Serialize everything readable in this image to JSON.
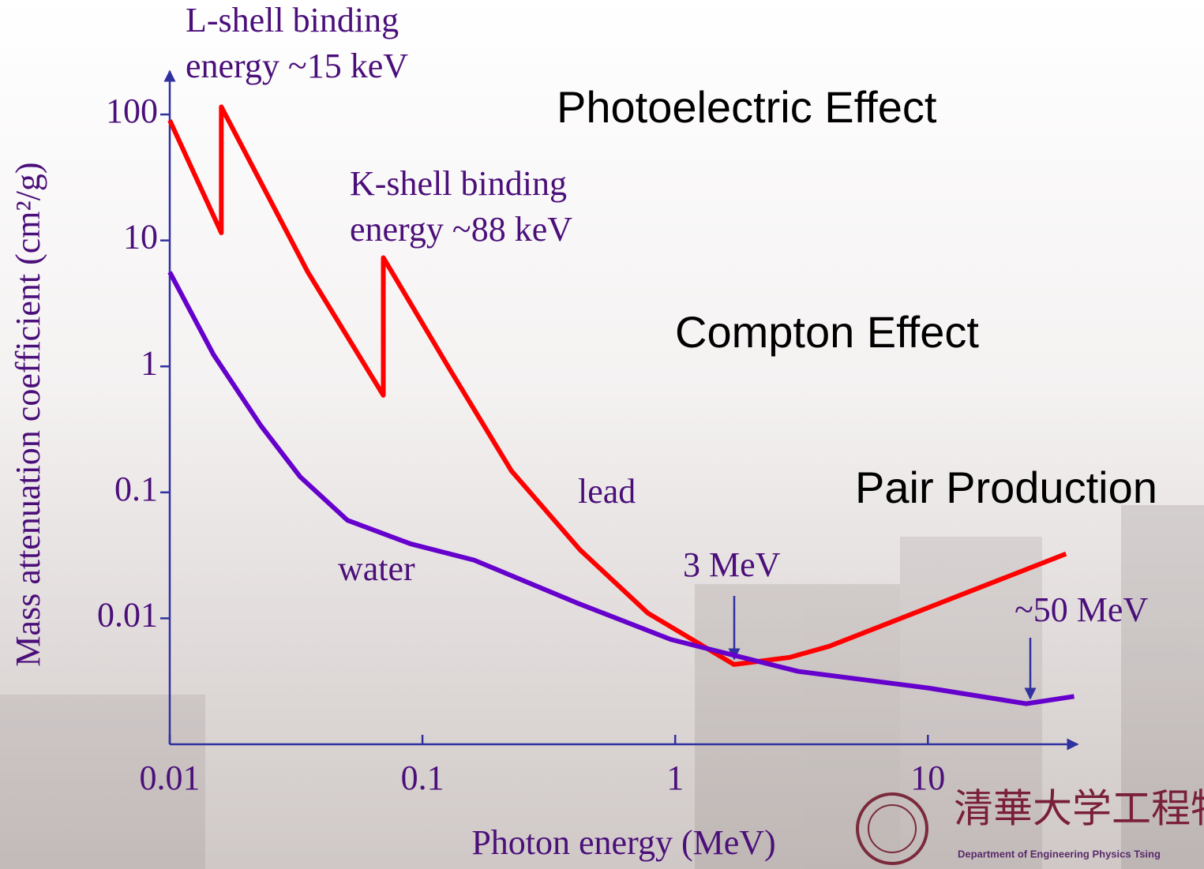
{
  "chart_data": {
    "type": "line",
    "xlabel": "Photon energy (MeV)",
    "ylabel": "Mass attenuation coefficient (cm²/g)",
    "xlog": true,
    "ylog": true,
    "xlim": [
      0.01,
      40
    ],
    "ylim": [
      0.001,
      200
    ],
    "xticks": [
      0.01,
      0.1,
      1,
      10
    ],
    "yticks": [
      0.01,
      0.1,
      1,
      10,
      100
    ],
    "series": [
      {
        "name": "lead",
        "color": "#ff0000",
        "x": [
          0.01,
          0.016,
          0.016,
          0.0352,
          0.07,
          0.07,
          0.129,
          0.225,
          0.42,
          0.78,
          1.71,
          2.84,
          4.07,
          35.2
        ],
        "values": [
          90,
          11.5,
          115,
          5.6,
          0.59,
          7.3,
          0.93,
          0.148,
          0.035,
          0.011,
          0.0043,
          0.0049,
          0.006,
          0.0325
        ]
      },
      {
        "name": "water",
        "color": "#6600cc",
        "x": [
          0.01,
          0.0149,
          0.0229,
          0.0328,
          0.0505,
          0.0898,
          0.16,
          0.407,
          0.96,
          3.05,
          10,
          24.5,
          37.9
        ],
        "values": [
          5.6,
          1.24,
          0.34,
          0.133,
          0.06,
          0.039,
          0.029,
          0.0133,
          0.0068,
          0.0038,
          0.0028,
          0.0021,
          0.0024
        ]
      }
    ],
    "annotations": [
      {
        "lines": [
          "L-shell binding",
          "energy ~15 keV"
        ]
      },
      {
        "lines": [
          "K-shell binding",
          "energy ~88 keV"
        ]
      },
      {
        "lines": [
          "Photoelectric Effect"
        ]
      },
      {
        "lines": [
          "Compton Effect"
        ]
      },
      {
        "lines": [
          "Pair Production"
        ]
      },
      {
        "lines": [
          "3 MeV"
        ]
      },
      {
        "lines": [
          "~50 MeV"
        ]
      }
    ]
  },
  "logo": {
    "name": "清華大学工程物",
    "subtitle": "Department of Engineering Physics Tsing"
  }
}
